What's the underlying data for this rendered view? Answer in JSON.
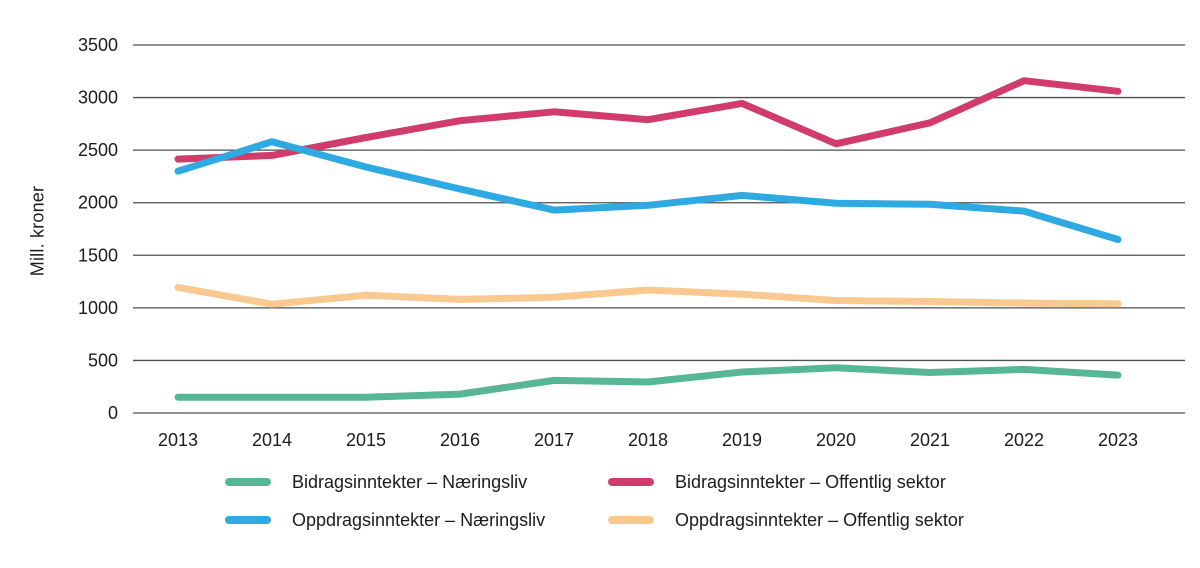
{
  "chart_data": {
    "type": "line",
    "title": "",
    "xlabel": "",
    "ylabel": "Mill. kroner",
    "x": [
      2013,
      2014,
      2015,
      2016,
      2017,
      2018,
      2019,
      2020,
      2021,
      2022,
      2023
    ],
    "x_tick_labels": [
      "2013",
      "2014",
      "2015",
      "2016",
      "2017",
      "2018",
      "2019",
      "2020",
      "2021",
      "2022",
      "2023"
    ],
    "y_tick_labels": [
      "0",
      "500",
      "1000",
      "1500",
      "2000",
      "2500",
      "3000",
      "3500"
    ],
    "ylim": [
      0,
      3500
    ],
    "ytick_step": 500,
    "grid": true,
    "gridline_color": "#4f4f4f",
    "text_color": "#1c1c1c",
    "legend_position": "bottom",
    "series": [
      {
        "name": "Bidragsinntekter – Næringsliv",
        "color": "#57b795",
        "values": [
          150,
          150,
          150,
          180,
          310,
          295,
          390,
          430,
          385,
          415,
          360
        ]
      },
      {
        "name": "Bidragsinntekter – Offentlig sektor",
        "color": "#d23c6c",
        "values": [
          2415,
          2450,
          2620,
          2780,
          2865,
          2790,
          2945,
          2560,
          2760,
          3160,
          3060
        ]
      },
      {
        "name": "Oppdragsinntekter – Næringsliv",
        "color": "#2fa9e1",
        "values": [
          2300,
          2580,
          2340,
          2130,
          1930,
          1975,
          2070,
          1995,
          1985,
          1920,
          1650
        ]
      },
      {
        "name": "Oppdragsinntekter  – Offentlig sektor",
        "color": "#fac98f",
        "values": [
          1195,
          1035,
          1120,
          1080,
          1100,
          1170,
          1130,
          1070,
          1060,
          1045,
          1040
        ]
      }
    ]
  },
  "legend": {
    "items": [
      {
        "label": "Bidragsinntekter – Næringsliv",
        "color": "#57b795"
      },
      {
        "label": "Bidragsinntekter – Offentlig sektor",
        "color": "#d23c6c"
      },
      {
        "label": "Oppdragsinntekter – Næringsliv",
        "color": "#2fa9e1"
      },
      {
        "label": "Oppdragsinntekter  – Offentlig sektor",
        "color": "#fac98f"
      }
    ]
  }
}
